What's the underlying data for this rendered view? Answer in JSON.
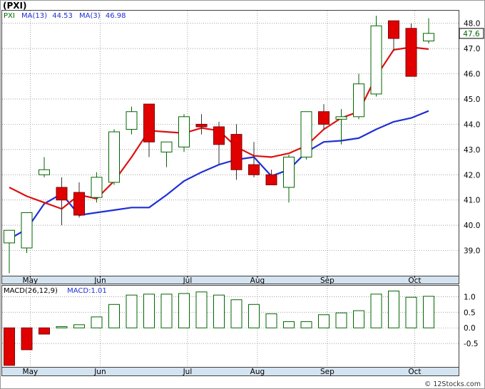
{
  "header": {
    "ticker": "(PXI)"
  },
  "price_legend": {
    "symbol": "PXI",
    "ma13_label": "MA(13)",
    "ma13_value": "44.53",
    "ma3_label": "MA(3)",
    "ma3_value": "46.98"
  },
  "macd_legend": {
    "label": "MACD(26,12,9)",
    "value_label": "MACD:1.01"
  },
  "last_price_label": "47.6",
  "watermark": "© 12Stocks.com",
  "colors": {
    "up_candle": "#006600",
    "down_candle": "#e00000",
    "ma13": "#1f2fd6",
    "ma3": "#dd1111",
    "macd_bar": "#006600",
    "grid": "#808080",
    "axis_band": "#d4e3f0"
  },
  "chart_data": [
    {
      "type": "candlestick",
      "title": "(PXI)",
      "ylim": [
        38.0,
        48.5
      ],
      "yticks": [
        "39.0",
        "40.0",
        "41.0",
        "42.0",
        "43.0",
        "44.0",
        "45.0",
        "46.0",
        "47.0",
        "48.0"
      ],
      "ytick_values": [
        39,
        40,
        41,
        42,
        43,
        44,
        45,
        46,
        47,
        48
      ],
      "xtick_labels": [
        "May",
        "Jun",
        "Jul",
        "Aug",
        "Sep",
        "Oct"
      ],
      "xtick_weeks": [
        1.2,
        5.2,
        10.2,
        14.2,
        18.2,
        23.2
      ],
      "grid": true,
      "candles": [
        {
          "o": 39.3,
          "h": 39.8,
          "l": 38.1,
          "c": 39.8
        },
        {
          "o": 39.1,
          "h": 40.5,
          "l": 38.9,
          "c": 40.5
        },
        {
          "o": 42.0,
          "h": 42.7,
          "l": 41.9,
          "c": 42.2
        },
        {
          "o": 41.5,
          "h": 41.9,
          "l": 40.0,
          "c": 41.0
        },
        {
          "o": 41.3,
          "h": 41.7,
          "l": 40.3,
          "c": 40.4
        },
        {
          "o": 41.1,
          "h": 42.1,
          "l": 40.9,
          "c": 41.9
        },
        {
          "o": 41.7,
          "h": 43.8,
          "l": 41.6,
          "c": 43.7
        },
        {
          "o": 43.8,
          "h": 44.7,
          "l": 43.6,
          "c": 44.5
        },
        {
          "o": 44.8,
          "h": 44.8,
          "l": 42.7,
          "c": 43.3
        },
        {
          "o": 42.9,
          "h": 43.3,
          "l": 42.3,
          "c": 43.3
        },
        {
          "o": 43.1,
          "h": 44.4,
          "l": 42.9,
          "c": 44.3
        },
        {
          "o": 44.0,
          "h": 44.4,
          "l": 43.6,
          "c": 43.9
        },
        {
          "o": 43.9,
          "h": 44.1,
          "l": 42.4,
          "c": 43.2
        },
        {
          "o": 43.6,
          "h": 44.0,
          "l": 41.8,
          "c": 42.2
        },
        {
          "o": 42.4,
          "h": 43.3,
          "l": 41.9,
          "c": 42.0
        },
        {
          "o": 42.0,
          "h": 42.2,
          "l": 41.6,
          "c": 41.6
        },
        {
          "o": 41.5,
          "h": 42.8,
          "l": 40.9,
          "c": 42.7
        },
        {
          "o": 42.7,
          "h": 44.5,
          "l": 42.6,
          "c": 44.5
        },
        {
          "o": 44.5,
          "h": 44.8,
          "l": 43.8,
          "c": 44.0
        },
        {
          "o": 44.2,
          "h": 44.6,
          "l": 43.2,
          "c": 44.3
        },
        {
          "o": 44.3,
          "h": 46.0,
          "l": 44.2,
          "c": 45.6
        },
        {
          "o": 45.2,
          "h": 48.3,
          "l": 45.1,
          "c": 47.9
        },
        {
          "o": 48.1,
          "h": 48.1,
          "l": 46.9,
          "c": 47.4
        },
        {
          "o": 47.8,
          "h": 48.0,
          "l": 45.9,
          "c": 45.9
        },
        {
          "o": 47.3,
          "h": 48.2,
          "l": 47.2,
          "c": 47.6
        }
      ],
      "series": [
        {
          "name": "MA(13)",
          "values": [
            39.45,
            39.85,
            40.85,
            41.25,
            40.4,
            40.5,
            40.6,
            40.7,
            40.7,
            41.2,
            41.75,
            42.1,
            42.4,
            42.6,
            42.7,
            41.95,
            42.2,
            42.9,
            43.3,
            43.35,
            43.45,
            43.8,
            44.1,
            44.25,
            44.53
          ]
        },
        {
          "name": "MA(3)",
          "values": [
            41.5,
            41.15,
            40.9,
            40.65,
            41.2,
            41.05,
            41.75,
            42.7,
            43.75,
            43.7,
            43.65,
            43.85,
            43.75,
            43.1,
            42.75,
            42.7,
            42.85,
            43.15,
            43.8,
            44.25,
            44.5,
            45.9,
            46.95,
            47.05,
            46.98
          ]
        }
      ]
    },
    {
      "type": "bar",
      "title": "MACD(26,12,9)",
      "ylim": [
        -1.25,
        1.35
      ],
      "yticks": [
        "1.0",
        "0.5",
        "0.0",
        "-0.5"
      ],
      "ytick_values": [
        1.0,
        0.5,
        0.0,
        -0.5
      ],
      "xtick_labels": [
        "May",
        "Jun",
        "Jul",
        "Aug",
        "Sep",
        "Oct"
      ],
      "xtick_weeks": [
        1.2,
        5.2,
        10.2,
        14.2,
        18.2,
        23.2
      ],
      "grid": true,
      "values": [
        -1.2,
        -0.7,
        -0.2,
        0.04,
        0.1,
        0.35,
        0.75,
        1.05,
        1.08,
        1.08,
        1.1,
        1.15,
        1.05,
        0.9,
        0.75,
        0.45,
        0.2,
        0.2,
        0.42,
        0.48,
        0.55,
        1.08,
        1.18,
        0.98,
        1.01
      ]
    }
  ]
}
